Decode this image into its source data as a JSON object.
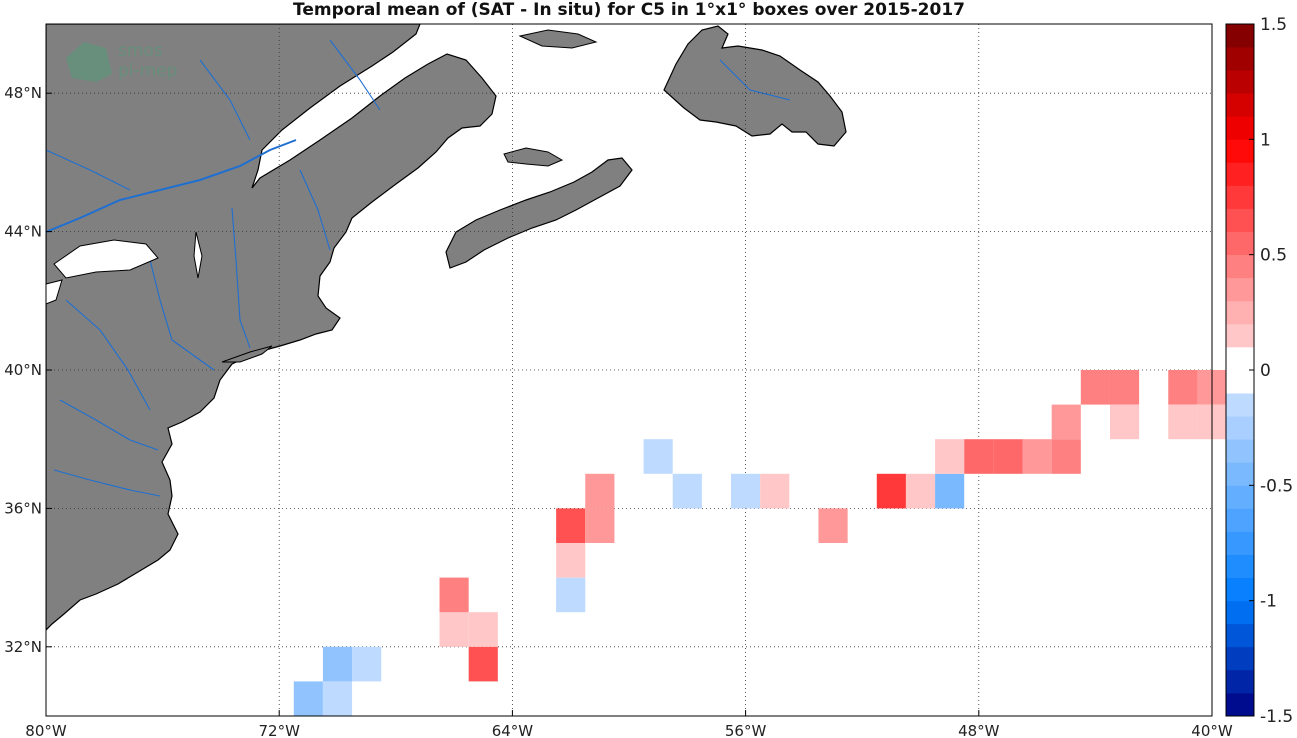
{
  "title": "Temporal mean of (SAT - In situ) for C5 in 1°x1° boxes over 2015-2017",
  "watermark": [
    "smos",
    "pi-mep"
  ],
  "map": {
    "lon_range": [
      -80,
      -40
    ],
    "lat_range": [
      30,
      50
    ],
    "lon_ticks": [
      -80,
      -72,
      -64,
      -56,
      -48,
      -40
    ],
    "lon_tick_labels": [
      "80°W",
      "72°W",
      "64°W",
      "56°W",
      "48°W",
      "40°W"
    ],
    "lat_ticks": [
      32,
      36,
      40,
      44,
      48
    ],
    "lat_tick_labels": [
      "32°N",
      "36°N",
      "40°N",
      "44°N",
      "48°N"
    ],
    "land_color": "#808080",
    "river_color": "#1f6fd1",
    "coast_color": "#000000",
    "grid": "dotted"
  },
  "colorbar": {
    "range": [
      -1.5,
      1.5
    ],
    "tick_values": [
      1.5,
      1,
      0.5,
      0,
      -0.5,
      -1,
      -1.5
    ],
    "tick_labels": [
      "1.5",
      "1",
      "0.5",
      "0",
      "-0.5",
      "-1",
      "-1.5"
    ]
  },
  "boxes": [
    {
      "lon": -71,
      "lat": 30.5,
      "value": -0.35
    },
    {
      "lon": -70,
      "lat": 30.5,
      "value": -0.15
    },
    {
      "lon": -70,
      "lat": 31.5,
      "value": -0.4
    },
    {
      "lon": -69,
      "lat": 31.5,
      "value": -0.1
    },
    {
      "lon": -65,
      "lat": 31.5,
      "value": 0.6
    },
    {
      "lon": -66,
      "lat": 32.5,
      "value": 0.15
    },
    {
      "lon": -65,
      "lat": 32.5,
      "value": 0.15
    },
    {
      "lon": -66,
      "lat": 33.5,
      "value": 0.4
    },
    {
      "lon": -62,
      "lat": 33.5,
      "value": -0.15
    },
    {
      "lon": -62,
      "lat": 34.5,
      "value": 0.15
    },
    {
      "lon": -62,
      "lat": 35.5,
      "value": 0.6
    },
    {
      "lon": -61,
      "lat": 35.5,
      "value": 0.3
    },
    {
      "lon": -61,
      "lat": 36.5,
      "value": 0.3
    },
    {
      "lon": -59,
      "lat": 37.5,
      "value": -0.1
    },
    {
      "lon": -58,
      "lat": 36.5,
      "value": -0.1
    },
    {
      "lon": -56,
      "lat": 36.5,
      "value": -0.1
    },
    {
      "lon": -55,
      "lat": 36.5,
      "value": 0.15
    },
    {
      "lon": -53,
      "lat": 35.5,
      "value": 0.3
    },
    {
      "lon": -51,
      "lat": 36.5,
      "value": 0.7
    },
    {
      "lon": -50,
      "lat": 36.5,
      "value": 0.15
    },
    {
      "lon": -49,
      "lat": 36.5,
      "value": -0.45
    },
    {
      "lon": -49,
      "lat": 37.5,
      "value": 0.15
    },
    {
      "lon": -48,
      "lat": 37.5,
      "value": 0.55
    },
    {
      "lon": -47,
      "lat": 37.5,
      "value": 0.55
    },
    {
      "lon": -46,
      "lat": 37.5,
      "value": 0.3
    },
    {
      "lon": -45,
      "lat": 37.5,
      "value": 0.45
    },
    {
      "lon": -45,
      "lat": 38.5,
      "value": 0.35
    },
    {
      "lon": -44,
      "lat": 39.5,
      "value": 0.4
    },
    {
      "lon": -43,
      "lat": 39.5,
      "value": 0.4
    },
    {
      "lon": -43,
      "lat": 38.5,
      "value": 0.15
    },
    {
      "lon": -41,
      "lat": 39.5,
      "value": 0.4
    },
    {
      "lon": -40,
      "lat": 39.5,
      "value": 0.3
    },
    {
      "lon": -41,
      "lat": 38.5,
      "value": 0.15
    },
    {
      "lon": -40,
      "lat": 38.5,
      "value": 0.15
    }
  ]
}
